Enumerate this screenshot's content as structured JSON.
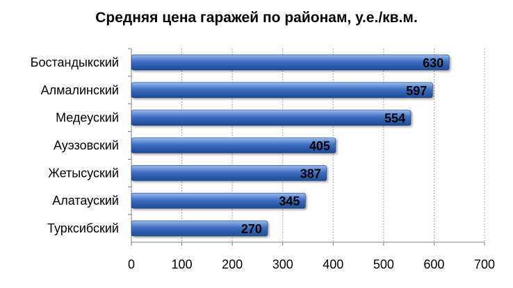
{
  "chart_data": {
    "type": "bar",
    "orientation": "horizontal",
    "title": "Средняя цена гаражей по районам, у.е./кв.м.",
    "xlabel": "",
    "ylabel": "",
    "categories": [
      "Бостандыкский",
      "Алмалинский",
      "Медеуский",
      "Ауэзовский",
      "Жетысуский",
      "Алатауский",
      "Турксибский"
    ],
    "values": [
      630,
      597,
      554,
      405,
      387,
      345,
      270
    ],
    "value_labels": [
      "630",
      "597",
      "554",
      "405",
      "387",
      "345",
      "270"
    ],
    "xlim": [
      0,
      700
    ],
    "ticks": [
      "0",
      "100",
      "200",
      "300",
      "400",
      "500",
      "600",
      "700"
    ],
    "grid": "vertical dotted",
    "legend": "none",
    "bar_color": "#3f6fbf",
    "bar_color_light": "#9cbcf0",
    "bar_color_dark": "#1f4a95"
  }
}
